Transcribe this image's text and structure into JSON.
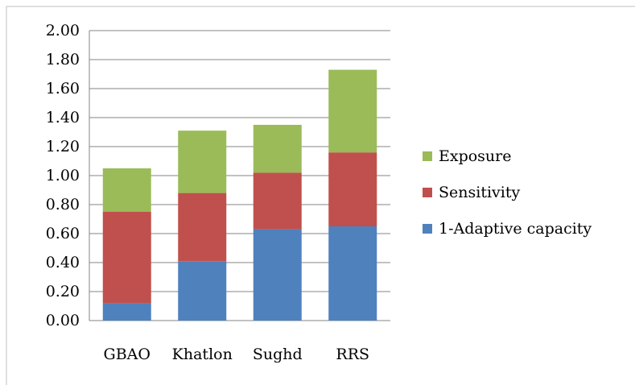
{
  "chart_data": {
    "type": "bar",
    "stacked": true,
    "title": "",
    "xlabel": "",
    "ylabel": "",
    "categories": [
      "GBAO",
      "Khatlon",
      "Sughd",
      "RRS"
    ],
    "series": [
      {
        "name": "1-Adaptive capacity",
        "values": [
          0.12,
          0.41,
          0.63,
          0.65
        ],
        "color": "#4f81bd"
      },
      {
        "name": "Sensitivity",
        "values": [
          0.63,
          0.47,
          0.39,
          0.51
        ],
        "color": "#c0504d"
      },
      {
        "name": "Exposure",
        "values": [
          0.3,
          0.43,
          0.33,
          0.57
        ],
        "color": "#9bbb59"
      }
    ],
    "ylim": [
      0,
      2.0
    ],
    "yticks": [
      "0.00",
      "0.20",
      "0.40",
      "0.60",
      "0.80",
      "1.00",
      "1.20",
      "1.40",
      "1.60",
      "1.80",
      "2.00"
    ],
    "grid": true,
    "legend_position": "right",
    "legend_order": [
      "Exposure",
      "Sensitivity",
      "1-Adaptive capacity"
    ]
  },
  "colors": {
    "gridline": "#868686",
    "border": "#bfbfbf"
  }
}
